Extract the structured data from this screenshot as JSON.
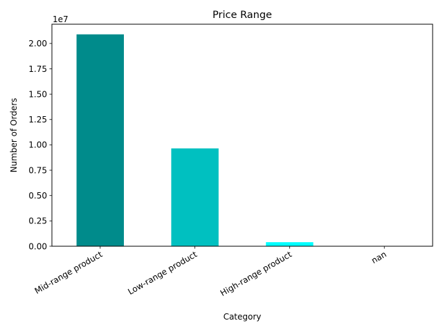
{
  "chart_data": {
    "type": "bar",
    "title": "Price Range",
    "xlabel": "Category",
    "ylabel": "Number of Orders",
    "categories": [
      "Mid-range product",
      "Low-range product",
      "High-range product",
      "nan"
    ],
    "values": [
      20900000,
      9650000,
      400000,
      0
    ],
    "ylim": [
      0,
      21900000
    ],
    "yticks": [
      0,
      2500000,
      5000000,
      7500000,
      10000000,
      12500000,
      15000000,
      17500000,
      20000000
    ],
    "ytick_labels": [
      "0.00",
      "0.25",
      "0.50",
      "0.75",
      "1.00",
      "1.25",
      "1.50",
      "1.75",
      "2.00"
    ],
    "y_offset_label": "1e7",
    "bar_colors": [
      "#008b8b",
      "#00c0c0",
      "#00ffff",
      "#00ffff"
    ],
    "grid": false,
    "legend": "none"
  }
}
